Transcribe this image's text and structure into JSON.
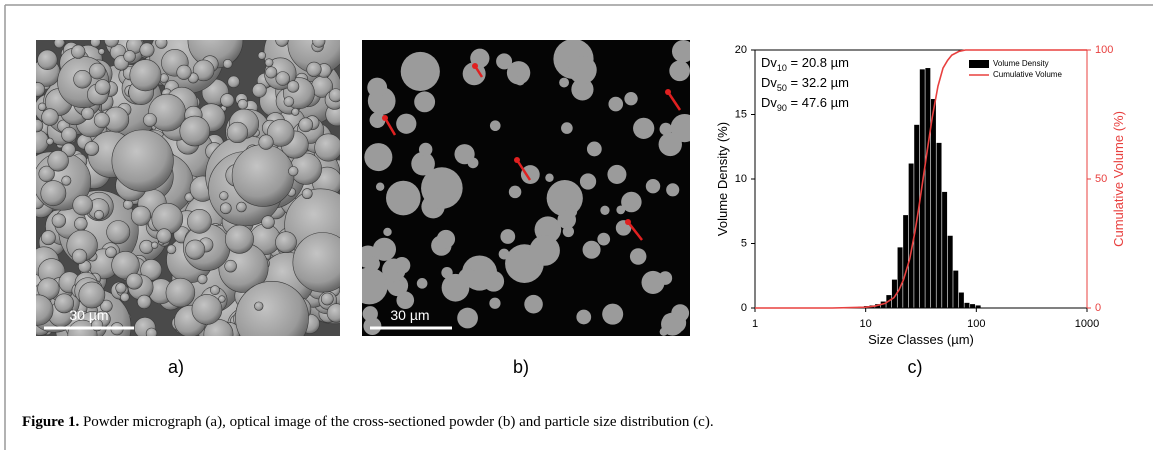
{
  "panels": [
    {
      "scale_bar": "30 µm",
      "label": "a)"
    },
    {
      "scale_bar": "30 µm",
      "label": "b)"
    }
  ],
  "chart_data": {
    "type": "bar",
    "label": "c)",
    "xlabel": "Size Classes (µm)",
    "ylabel": "Volume Density (%)",
    "y2label": "Cumulative Volume (%)",
    "xscale": "log",
    "xlim": [
      1,
      1000
    ],
    "xticks": [
      1,
      10,
      100,
      1000
    ],
    "ylim": [
      0,
      20
    ],
    "yticks": [
      0,
      5,
      10,
      15,
      20
    ],
    "y2lim": [
      0,
      100
    ],
    "y2ticks": [
      0,
      50,
      100
    ],
    "legend": "upper right",
    "annotations": [
      {
        "base": "Dv",
        "sub": "10",
        "rest": " = 20.8 µm"
      },
      {
        "base": "Dv",
        "sub": "50",
        "rest": " = 32.2 µm"
      },
      {
        "base": "Dv",
        "sub": "90",
        "rest": " = 47.6 µm"
      }
    ],
    "series": [
      {
        "name": "Volume Density",
        "color": "#000000",
        "kind": "bar",
        "x": [
          8.1,
          9.1,
          10.2,
          11.5,
          12.9,
          14.5,
          16.3,
          18.3,
          20.6,
          23.1,
          25.9,
          29.1,
          32.7,
          36.7,
          41.2,
          46.3,
          52.0,
          58.4,
          65.6,
          73.7,
          82.8,
          93.0,
          104.5
        ],
        "values": [
          0.05,
          0.1,
          0.15,
          0.2,
          0.3,
          0.5,
          1.0,
          2.2,
          4.7,
          7.2,
          11.2,
          14.2,
          18.5,
          18.6,
          16.2,
          12.8,
          9.0,
          5.6,
          2.9,
          1.2,
          0.4,
          0.3,
          0.2
        ]
      },
      {
        "name": "Cumulative Volume",
        "color": "#e8403f",
        "kind": "line",
        "axis": "y2",
        "x": [
          1,
          5,
          10,
          12,
          15,
          18,
          20,
          22,
          25,
          28,
          30,
          33,
          36,
          40,
          45,
          50,
          55,
          60,
          70,
          80,
          100,
          1000
        ],
        "values": [
          0,
          0,
          0.3,
          0.7,
          1.8,
          4,
          7,
          11,
          19,
          30,
          38,
          50,
          61,
          74,
          86,
          93,
          96,
          98,
          99.5,
          100,
          100,
          100
        ]
      }
    ]
  },
  "caption": {
    "label": "Figure 1.",
    "text": " Powder micrograph (a), optical image of the cross-sectioned powder (b) and particle size distribution (c)."
  }
}
